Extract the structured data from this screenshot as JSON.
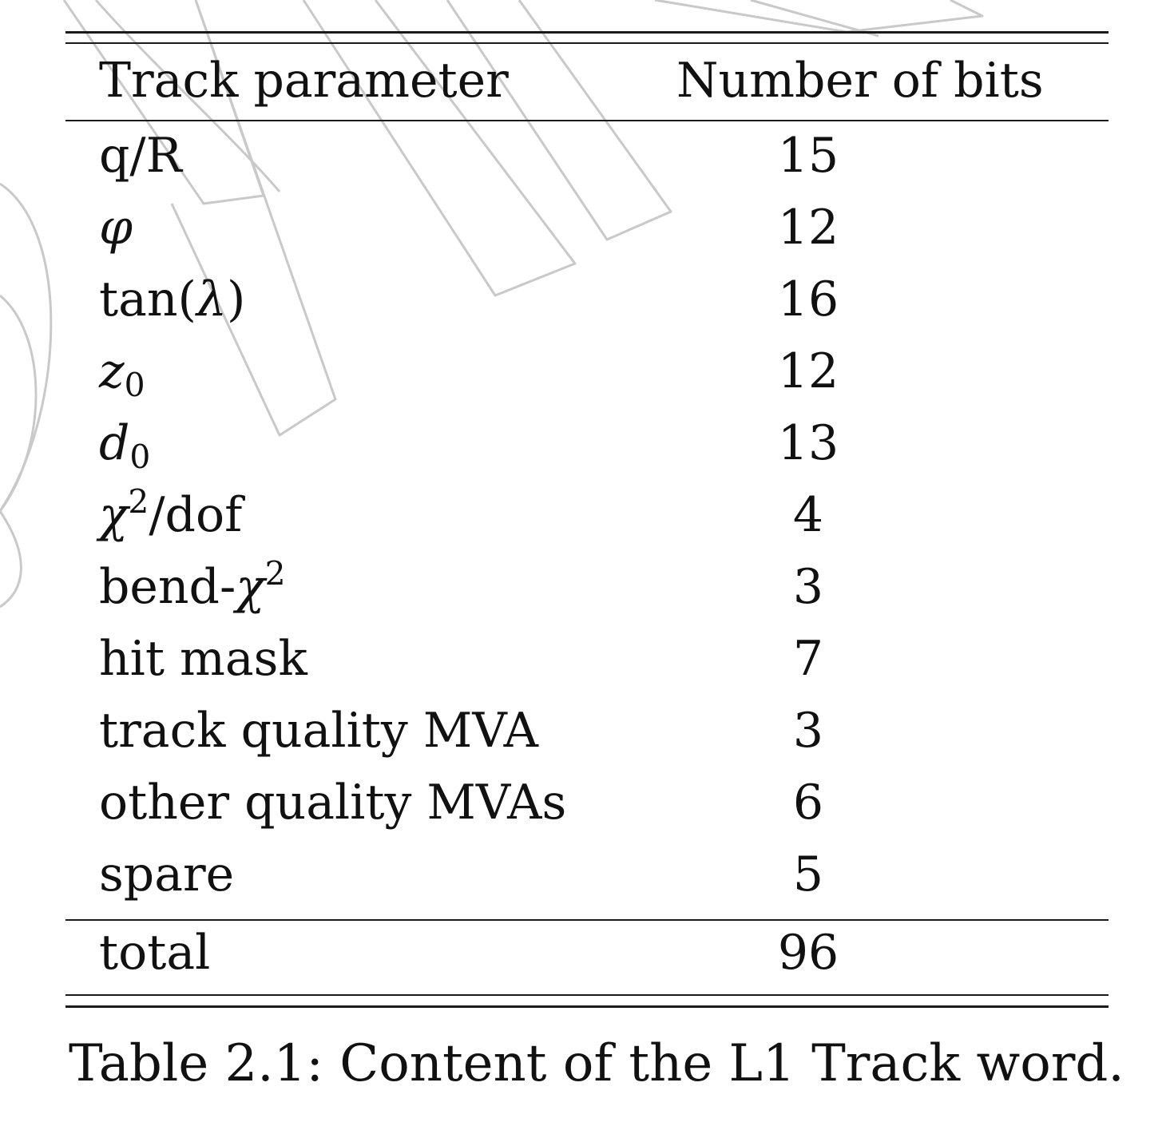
{
  "table": {
    "header": {
      "param": "Track parameter",
      "bits": "Number of bits"
    },
    "rows": [
      {
        "param": "q/R",
        "bits": "15"
      },
      {
        "param": "φ",
        "bits": "12"
      },
      {
        "param_fn": "tan(",
        "param_sym": "λ",
        "param_close": ")",
        "bits": "16"
      },
      {
        "param_sym": "z",
        "param_sub": "0",
        "bits": "12"
      },
      {
        "param_sym": "d",
        "param_sub": "0",
        "bits": "13"
      },
      {
        "param_sym": "χ",
        "param_sup": "2",
        "param_rest": "/dof",
        "bits": "4"
      },
      {
        "param_pre": "bend-",
        "param_sym": "χ",
        "param_sup": "2",
        "bits": "3"
      },
      {
        "param": "hit mask",
        "bits": "7"
      },
      {
        "param": "track quality MVA",
        "bits": "3"
      },
      {
        "param": "other quality MVAs",
        "bits": "6"
      },
      {
        "param": "spare",
        "bits": "5"
      }
    ],
    "total": {
      "param": "total",
      "bits": "96"
    }
  },
  "caption": "Table 2.1: Content of the L1 Track word."
}
